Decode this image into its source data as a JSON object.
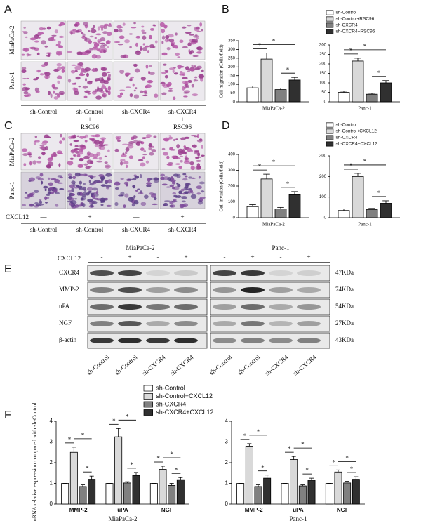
{
  "panel_labels": [
    "A",
    "B",
    "C",
    "D",
    "E",
    "F"
  ],
  "panel_a": {
    "row_labels": [
      "MiaPaCa-2",
      "Panc-1"
    ],
    "column_labels": [
      [
        "sh-Control"
      ],
      [
        "sh-Control",
        "+",
        "RSC96"
      ],
      [
        "sh-CXCR4"
      ],
      [
        "sh-CXCR4",
        "+",
        "RSC96"
      ]
    ]
  },
  "panel_c": {
    "row_labels": [
      "MiaPaCa-2",
      "Panc-1"
    ],
    "treatment_label": "CXCL12",
    "treatment_signs": [
      "—",
      "+",
      "—",
      "+"
    ],
    "column_labels": [
      "sh-Control",
      "sh-Control",
      "sh-CXCR4",
      "sh-CXCR4"
    ]
  },
  "panel_e": {
    "cell_lines": [
      "MiaPaCa-2",
      "Panc-1"
    ],
    "treatment_label": "CXCL12",
    "treatment_signs": [
      "-",
      "+",
      "-",
      "+",
      "-",
      "+",
      "-",
      "+"
    ],
    "proteins": [
      "CXCR4",
      "MMP-2",
      "uPA",
      "NGF",
      "β-actin"
    ],
    "sizes": [
      "47KDa",
      "74KDa",
      "54KDa",
      "27KDa",
      "43KDa"
    ],
    "lane_labels": [
      "sh-Control",
      "sh-Control",
      "sh-CXCR4",
      "sh-CXCR4",
      "sh-Control",
      "sh-Control",
      "sh-CXCR4",
      "sh-CXCR4"
    ]
  },
  "chart_data": [
    {
      "type": "bar",
      "ylabel": "Cell migration (Cells/field)",
      "xlabel": "MiaPaCa-2",
      "ylim": [
        0,
        350
      ],
      "yticks": [
        0,
        50,
        100,
        150,
        200,
        250,
        300,
        350
      ],
      "series": [
        {
          "color": "#ffffff",
          "values": [
            80
          ],
          "errors": [
            10
          ]
        },
        {
          "color": "#d9d9d9",
          "values": [
            245
          ],
          "errors": [
            35
          ]
        },
        {
          "color": "#808080",
          "values": [
            70
          ],
          "errors": [
            8
          ]
        },
        {
          "color": "#303030",
          "values": [
            125
          ],
          "errors": [
            15
          ]
        }
      ],
      "annotations": [
        "*",
        "*",
        "*"
      ]
    },
    {
      "type": "bar",
      "xlabel": "Panc-1",
      "ylim": [
        0,
        300
      ],
      "yticks": [
        0,
        50,
        100,
        150,
        200,
        250,
        300
      ],
      "series": [
        {
          "name": "sh-Control",
          "color": "#ffffff",
          "values": [
            50
          ],
          "errors": [
            6
          ]
        },
        {
          "name": "sh-Control+RSC96",
          "color": "#d9d9d9",
          "values": [
            215
          ],
          "errors": [
            15
          ]
        },
        {
          "name": "sh-CXCR4",
          "color": "#808080",
          "values": [
            40
          ],
          "errors": [
            5
          ]
        },
        {
          "name": "sh-CXCR4+RSC96",
          "color": "#303030",
          "values": [
            100
          ],
          "errors": [
            12
          ]
        }
      ],
      "annotations": [
        "*",
        "*",
        "*"
      ]
    },
    {
      "type": "bar",
      "ylabel": "Cell invasion (Cells/field)",
      "xlabel": "MiaPaCa-2",
      "ylim": [
        0,
        400
      ],
      "yticks": [
        0,
        100,
        200,
        300,
        400
      ],
      "series": [
        {
          "color": "#ffffff",
          "values": [
            70
          ],
          "errors": [
            12
          ]
        },
        {
          "color": "#d9d9d9",
          "values": [
            245
          ],
          "errors": [
            30
          ]
        },
        {
          "color": "#808080",
          "values": [
            55
          ],
          "errors": [
            10
          ]
        },
        {
          "color": "#303030",
          "values": [
            145
          ],
          "errors": [
            20
          ]
        }
      ],
      "annotations": [
        "*",
        "*",
        "*"
      ]
    },
    {
      "type": "bar",
      "xlabel": "Panc-1",
      "ylim": [
        0,
        300
      ],
      "yticks": [
        0,
        100,
        200,
        300
      ],
      "series": [
        {
          "name": "sh-Control",
          "color": "#ffffff",
          "values": [
            35
          ],
          "errors": [
            8
          ]
        },
        {
          "name": "sh-Control+CXCL12",
          "color": "#d9d9d9",
          "values": [
            200
          ],
          "errors": [
            15
          ]
        },
        {
          "name": "sh-CXCR4",
          "color": "#808080",
          "values": [
            40
          ],
          "errors": [
            5
          ]
        },
        {
          "name": "sh-CXCR4+CXCL12",
          "color": "#303030",
          "values": [
            70
          ],
          "errors": [
            12
          ]
        }
      ],
      "annotations": [
        "*",
        "*",
        "*"
      ]
    },
    {
      "type": "bar",
      "ylabel": "mRNA relative expression compared with sh-Control",
      "xlabel": "MiaPaCa-2",
      "categories": [
        "MMP-2",
        "uPA",
        "NGF"
      ],
      "ylim": [
        0,
        4
      ],
      "yticks": [
        0,
        1,
        2,
        3,
        4
      ],
      "series": [
        {
          "name": "sh-Control",
          "color": "#ffffff",
          "values": [
            1,
            1,
            1
          ],
          "errors": [
            0,
            0,
            0
          ]
        },
        {
          "name": "sh-Control+CXCL12",
          "color": "#d9d9d9",
          "values": [
            2.5,
            3.25,
            1.68
          ],
          "errors": [
            0.25,
            0.4,
            0.15
          ]
        },
        {
          "name": "sh-CXCR4",
          "color": "#808080",
          "values": [
            0.85,
            1.02,
            0.9
          ],
          "errors": [
            0.08,
            0.06,
            0.1
          ]
        },
        {
          "name": "sh-CXCR4+CXCL12",
          "color": "#303030",
          "values": [
            1.2,
            1.38,
            1.18
          ],
          "errors": [
            0.15,
            0.15,
            0.1
          ]
        }
      ],
      "annotations": [
        "*",
        "*",
        "*",
        "*",
        "*",
        "*",
        "*",
        "*",
        "*"
      ]
    },
    {
      "type": "bar",
      "xlabel": "Panc-1",
      "categories": [
        "MMP-2",
        "uPA",
        "NGF"
      ],
      "ylim": [
        0,
        4
      ],
      "yticks": [
        0,
        1,
        2,
        3,
        4
      ],
      "series": [
        {
          "color": "#ffffff",
          "values": [
            1,
            1,
            1
          ],
          "errors": [
            0,
            0,
            0
          ]
        },
        {
          "color": "#d9d9d9",
          "values": [
            2.8,
            2.15,
            1.55
          ],
          "errors": [
            0.12,
            0.15,
            0.1
          ]
        },
        {
          "color": "#808080",
          "values": [
            0.85,
            0.88,
            1.02
          ],
          "errors": [
            0.08,
            0.05,
            0.08
          ]
        },
        {
          "color": "#303030",
          "values": [
            1.25,
            1.15,
            1.2
          ],
          "errors": [
            0.15,
            0.1,
            0.12
          ]
        }
      ],
      "annotations": [
        "*",
        "*",
        "*",
        "*",
        "*",
        "*",
        "*",
        "*",
        "*"
      ]
    }
  ]
}
